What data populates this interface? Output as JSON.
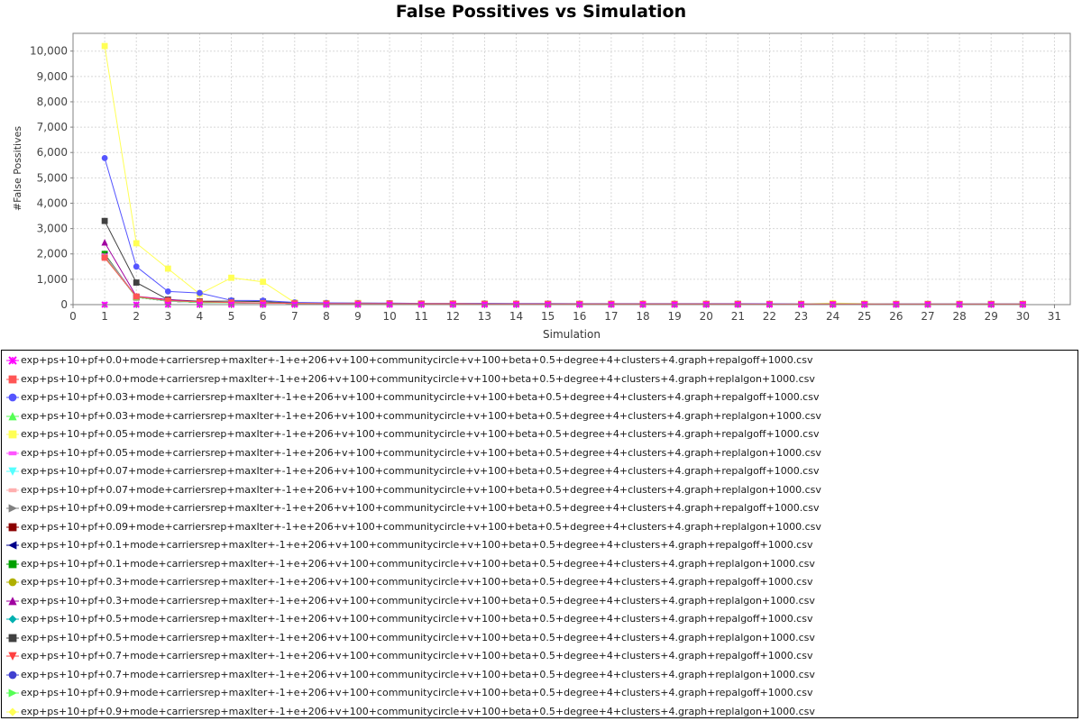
{
  "chart_data": {
    "type": "line",
    "title": "False Possitives vs Simulation",
    "xlabel": "Simulation",
    "ylabel": "#False Possitives",
    "xlim": [
      0,
      31.5
    ],
    "ylim": [
      0,
      10700
    ],
    "x_ticks": [
      "0",
      "1",
      "2",
      "3",
      "4",
      "5",
      "6",
      "7",
      "8",
      "9",
      "10",
      "11",
      "12",
      "13",
      "14",
      "15",
      "16",
      "17",
      "18",
      "19",
      "20",
      "21",
      "22",
      "23",
      "24",
      "25",
      "26",
      "27",
      "28",
      "29",
      "30",
      "31"
    ],
    "y_ticks": [
      "0",
      "1,000",
      "2,000",
      "3,000",
      "4,000",
      "5,000",
      "6,000",
      "7,000",
      "8,000",
      "9,000",
      "10,000"
    ],
    "grid": true,
    "legend_position": "bottom",
    "x": [
      1,
      2,
      3,
      4,
      5,
      6,
      7,
      8,
      9,
      10,
      11,
      12,
      13,
      14,
      15,
      16,
      17,
      18,
      19,
      20,
      21,
      22,
      23,
      24,
      25,
      26,
      27,
      28,
      29,
      30
    ],
    "series": [
      {
        "name": "exp+ps+10+pf+0.0+mode+carriersrep+maxIter+-1+e+206+v+100+communitycircle+v+100+beta+0.5+degree+4+clusters+4.graph+repalgoff+1000.csv",
        "color": "#ff00ff",
        "marker": "x",
        "values": [
          0,
          0,
          0,
          0,
          0,
          0,
          0,
          0,
          0,
          0,
          0,
          0,
          0,
          0,
          0,
          0,
          0,
          0,
          0,
          0,
          0,
          0,
          0,
          0,
          0,
          0,
          0,
          0,
          0,
          0
        ]
      },
      {
        "name": "exp+ps+10+pf+0.0+mode+carriersrep+maxIter+-1+e+206+v+100+communitycircle+v+100+beta+0.5+degree+4+clusters+4.graph+replalgon+1000.csv",
        "color": "#ff5555",
        "marker": "square",
        "values": [
          1850,
          320,
          160,
          110,
          80,
          60,
          50,
          40,
          40,
          40,
          35,
          35,
          30,
          30,
          30,
          25,
          25,
          25,
          25,
          25,
          25,
          20,
          20,
          20,
          20,
          20,
          20,
          20,
          20,
          20
        ]
      },
      {
        "name": "exp+ps+10+pf+0.03+mode+carriersrep+maxIter+-1+e+206+v+100+communitycircle+v+100+beta+0.5+degree+4+clusters+4.graph+repalgoff+1000.csv",
        "color": "#5555ff",
        "marker": "circle",
        "values": [
          5780,
          1500,
          520,
          460,
          170,
          160,
          90,
          70,
          60,
          60,
          50,
          50,
          50,
          45,
          45,
          40,
          40,
          40,
          40,
          40,
          40,
          35,
          30,
          30,
          30,
          30,
          30,
          30,
          30,
          30
        ]
      },
      {
        "name": "exp+ps+10+pf+0.03+mode+carriersrep+maxIter+-1+e+206+v+100+communitycircle+v+100+beta+0.5+degree+4+clusters+4.graph+replalgon+1000.csv",
        "color": "#55ff55",
        "marker": "triangle-up",
        "values": [
          1900,
          300,
          150,
          90,
          70,
          60,
          50,
          45,
          40,
          40,
          35,
          35,
          30,
          30,
          30,
          30,
          25,
          25,
          25,
          25,
          25,
          20,
          20,
          20,
          20,
          20,
          20,
          20,
          20,
          20
        ]
      },
      {
        "name": "exp+ps+10+pf+0.05+mode+carriersrep+maxIter+-1+e+206+v+100+communitycircle+v+100+beta+0.5+degree+4+clusters+4.graph+repalgoff+1000.csv",
        "color": "#ffff55",
        "marker": "square",
        "values": [
          10200,
          2420,
          1420,
          420,
          1060,
          900,
          80,
          60,
          60,
          50,
          45,
          45,
          45,
          40,
          40,
          40,
          40,
          40,
          40,
          40,
          35,
          30,
          30,
          60,
          40,
          30,
          30,
          30,
          30,
          30
        ]
      },
      {
        "name": "exp+ps+10+pf+0.05+mode+carriersrep+maxIter+-1+e+206+v+100+communitycircle+v+100+beta+0.5+degree+4+clusters+4.graph+replalgon+1000.csv",
        "color": "#ff55ff",
        "marker": "dash",
        "values": [
          1950,
          310,
          150,
          100,
          70,
          60,
          50,
          45,
          40,
          40,
          35,
          35,
          30,
          30,
          30,
          30,
          25,
          25,
          25,
          25,
          25,
          20,
          20,
          20,
          20,
          20,
          20,
          20,
          20,
          20
        ]
      },
      {
        "name": "exp+ps+10+pf+0.07+mode+carriersrep+maxIter+-1+e+206+v+100+communitycircle+v+100+beta+0.5+degree+4+clusters+4.graph+repalgoff+1000.csv",
        "color": "#55ffff",
        "marker": "triangle-down",
        "values": [
          1880,
          300,
          140,
          90,
          70,
          60,
          50,
          45,
          40,
          40,
          35,
          35,
          30,
          30,
          30,
          30,
          25,
          25,
          25,
          25,
          25,
          20,
          20,
          20,
          20,
          20,
          20,
          20,
          20,
          20
        ]
      },
      {
        "name": "exp+ps+10+pf+0.07+mode+carriersrep+maxIter+-1+e+206+v+100+communitycircle+v+100+beta+0.5+degree+4+clusters+4.graph+replalgon+1000.csv",
        "color": "#ffafaf",
        "marker": "dash",
        "values": [
          1900,
          290,
          140,
          90,
          70,
          60,
          50,
          45,
          40,
          40,
          35,
          35,
          30,
          30,
          30,
          30,
          25,
          25,
          25,
          25,
          25,
          20,
          20,
          20,
          20,
          20,
          20,
          20,
          20,
          20
        ]
      },
      {
        "name": "exp+ps+10+pf+0.09+mode+carriersrep+maxIter+-1+e+206+v+100+communitycircle+v+100+beta+0.5+degree+4+clusters+4.graph+repalgoff+1000.csv",
        "color": "#808080",
        "marker": "triangle-right",
        "values": [
          1920,
          300,
          140,
          90,
          70,
          60,
          50,
          45,
          40,
          40,
          35,
          35,
          30,
          30,
          30,
          30,
          25,
          25,
          25,
          25,
          25,
          20,
          20,
          20,
          20,
          20,
          20,
          20,
          20,
          20
        ]
      },
      {
        "name": "exp+ps+10+pf+0.09+mode+carriersrep+maxIter+-1+e+206+v+100+communitycircle+v+100+beta+0.5+degree+4+clusters+4.graph+replalgon+1000.csv",
        "color": "#8b0000",
        "marker": "square",
        "values": [
          1900,
          290,
          140,
          90,
          70,
          60,
          50,
          45,
          40,
          40,
          35,
          35,
          30,
          30,
          30,
          30,
          25,
          25,
          25,
          25,
          25,
          20,
          20,
          20,
          20,
          20,
          20,
          20,
          20,
          20
        ]
      },
      {
        "name": "exp+ps+10+pf+0.1+mode+carriersrep+maxIter+-1+e+206+v+100+communitycircle+v+100+beta+0.5+degree+4+clusters+4.graph+repalgoff+1000.csv",
        "color": "#00008b",
        "marker": "triangle-left",
        "values": [
          1930,
          300,
          140,
          90,
          70,
          60,
          50,
          45,
          40,
          40,
          35,
          35,
          30,
          30,
          30,
          30,
          25,
          25,
          25,
          25,
          25,
          20,
          20,
          20,
          20,
          20,
          20,
          20,
          20,
          20
        ]
      },
      {
        "name": "exp+ps+10+pf+0.1+mode+carriersrep+maxIter+-1+e+206+v+100+communitycircle+v+100+beta+0.5+degree+4+clusters+4.graph+replalgon+1000.csv",
        "color": "#00a000",
        "marker": "square",
        "values": [
          2000,
          290,
          140,
          90,
          70,
          60,
          50,
          45,
          40,
          40,
          35,
          35,
          30,
          30,
          30,
          30,
          25,
          25,
          25,
          25,
          25,
          20,
          20,
          20,
          20,
          20,
          20,
          20,
          20,
          20
        ]
      },
      {
        "name": "exp+ps+10+pf+0.3+mode+carriersrep+maxIter+-1+e+206+v+100+communitycircle+v+100+beta+0.5+degree+4+clusters+4.graph+repalgoff+1000.csv",
        "color": "#b0b000",
        "marker": "circle",
        "values": [
          1950,
          290,
          140,
          90,
          70,
          60,
          50,
          45,
          40,
          40,
          35,
          35,
          30,
          30,
          30,
          30,
          25,
          25,
          25,
          25,
          25,
          20,
          20,
          20,
          20,
          20,
          20,
          20,
          20,
          20
        ]
      },
      {
        "name": "exp+ps+10+pf+0.3+mode+carriersrep+maxIter+-1+e+206+v+100+communitycircle+v+100+beta+0.5+degree+4+clusters+4.graph+replalgon+1000.csv",
        "color": "#a000a0",
        "marker": "triangle-up",
        "values": [
          2450,
          330,
          200,
          110,
          80,
          70,
          50,
          45,
          40,
          40,
          35,
          35,
          30,
          30,
          30,
          30,
          25,
          25,
          25,
          25,
          25,
          20,
          20,
          20,
          20,
          20,
          20,
          20,
          20,
          20
        ]
      },
      {
        "name": "exp+ps+10+pf+0.5+mode+carriersrep+maxIter+-1+e+206+v+100+communitycircle+v+100+beta+0.5+degree+4+clusters+4.graph+repalgoff+1000.csv",
        "color": "#00b0b0",
        "marker": "diamond",
        "values": [
          1900,
          290,
          140,
          90,
          70,
          60,
          50,
          45,
          40,
          40,
          35,
          35,
          30,
          30,
          30,
          30,
          25,
          25,
          25,
          25,
          25,
          20,
          20,
          20,
          20,
          20,
          20,
          20,
          20,
          20
        ]
      },
      {
        "name": "exp+ps+10+pf+0.5+mode+carriersrep+maxIter+-1+e+206+v+100+communitycircle+v+100+beta+0.5+degree+4+clusters+4.graph+replalgon+1000.csv",
        "color": "#404040",
        "marker": "square",
        "values": [
          3300,
          870,
          200,
          130,
          140,
          120,
          60,
          50,
          60,
          50,
          40,
          40,
          40,
          35,
          35,
          30,
          30,
          30,
          30,
          30,
          30,
          25,
          25,
          25,
          25,
          25,
          25,
          25,
          25,
          25
        ]
      },
      {
        "name": "exp+ps+10+pf+0.7+mode+carriersrep+maxIter+-1+e+206+v+100+communitycircle+v+100+beta+0.5+degree+4+clusters+4.graph+repalgoff+1000.csv",
        "color": "#ff4040",
        "marker": "triangle-down",
        "values": [
          1880,
          300,
          140,
          90,
          70,
          60,
          50,
          45,
          40,
          40,
          35,
          35,
          30,
          30,
          30,
          30,
          25,
          25,
          25,
          25,
          25,
          20,
          20,
          20,
          20,
          20,
          20,
          20,
          20,
          20
        ]
      },
      {
        "name": "exp+ps+10+pf+0.7+mode+carriersrep+maxIter+-1+e+206+v+100+communitycircle+v+100+beta+0.5+degree+4+clusters+4.graph+replalgon+1000.csv",
        "color": "#4040d0",
        "marker": "circle",
        "values": [
          1900,
          300,
          140,
          90,
          70,
          60,
          50,
          45,
          40,
          40,
          35,
          35,
          30,
          30,
          30,
          30,
          25,
          25,
          25,
          25,
          25,
          20,
          20,
          20,
          20,
          20,
          20,
          20,
          20,
          20
        ]
      },
      {
        "name": "exp+ps+10+pf+0.9+mode+carriersrep+maxIter+-1+e+206+v+100+communitycircle+v+100+beta+0.5+degree+4+clusters+4.graph+repalgoff+1000.csv",
        "color": "#55ff55",
        "marker": "triangle-right",
        "values": [
          1910,
          300,
          140,
          90,
          70,
          60,
          50,
          45,
          40,
          40,
          35,
          35,
          30,
          30,
          30,
          30,
          25,
          25,
          25,
          25,
          25,
          20,
          20,
          20,
          20,
          20,
          20,
          20,
          20,
          20
        ]
      },
      {
        "name": "exp+ps+10+pf+0.9+mode+carriersrep+maxIter+-1+e+206+v+100+communitycircle+v+100+beta+0.5+degree+4+clusters+4.graph+replalgon+1000.csv",
        "color": "#ffff55",
        "marker": "diamond",
        "values": [
          1920,
          300,
          140,
          90,
          70,
          60,
          50,
          45,
          40,
          40,
          35,
          35,
          30,
          30,
          30,
          30,
          25,
          25,
          25,
          25,
          25,
          20,
          20,
          20,
          20,
          20,
          20,
          20,
          20,
          20
        ]
      }
    ]
  }
}
